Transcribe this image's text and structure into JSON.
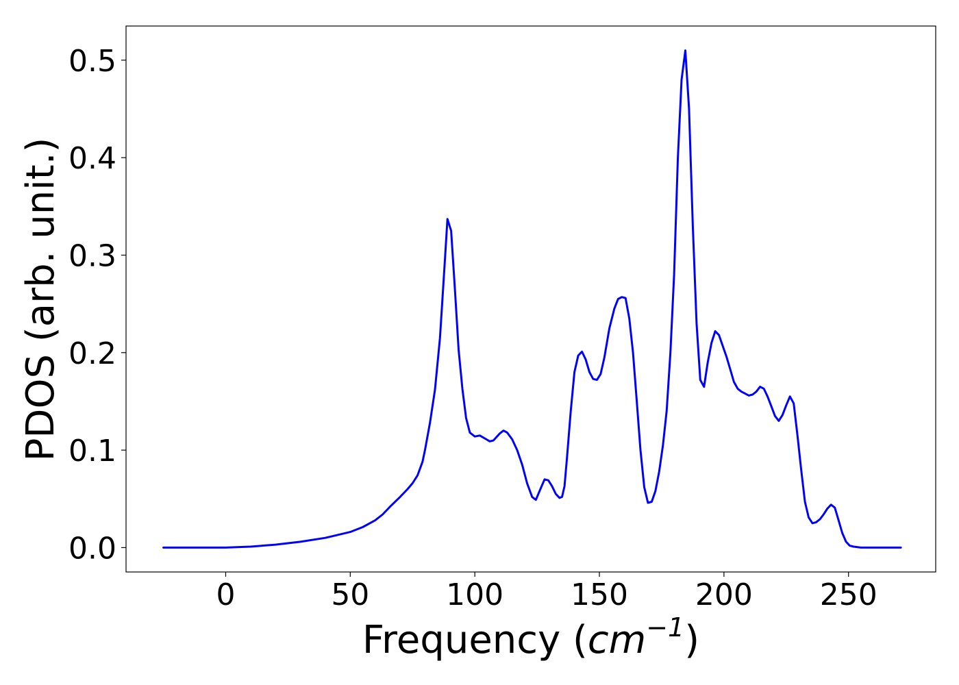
{
  "chart_data": {
    "type": "line",
    "title": "",
    "xlabel": "Frequency (cm⁻¹)",
    "xlabel_parts": {
      "prefix": "Frequency (",
      "unit_base": "cm",
      "unit_exp": "−1",
      "suffix": ")"
    },
    "ylabel": "PDOS (arb. unit.)",
    "xlim": [
      -40,
      285
    ],
    "ylim": [
      -0.025,
      0.535
    ],
    "xticks": [
      0,
      50,
      100,
      150,
      200,
      250
    ],
    "xtick_labels": [
      "0",
      "50",
      "100",
      "150",
      "200",
      "250"
    ],
    "yticks": [
      0.0,
      0.1,
      0.2,
      0.3,
      0.4,
      0.5
    ],
    "ytick_labels": [
      "0.0",
      "0.1",
      "0.2",
      "0.3",
      "0.4",
      "0.5"
    ],
    "grid": false,
    "legend": "none",
    "series": [
      {
        "color": "#0000ff",
        "x": [
          -25,
          0,
          10,
          20,
          30,
          40,
          50,
          55,
          60,
          63,
          66,
          70,
          73,
          75,
          77,
          79,
          80,
          82,
          84,
          86,
          88,
          89,
          90.5,
          92,
          93.5,
          95,
          96.5,
          98,
          100,
          102,
          104,
          106,
          107.5,
          110,
          111.5,
          113,
          115,
          117,
          119,
          121,
          123,
          124.5,
          126.5,
          128,
          129.5,
          131,
          132.5,
          134,
          135,
          136,
          137,
          138.5,
          140,
          141.5,
          143,
          144.5,
          146,
          147.5,
          149,
          150.5,
          152,
          154,
          156,
          157.5,
          159,
          160.5,
          162,
          163.5,
          165,
          166.5,
          168,
          169.5,
          171,
          172.5,
          174,
          175.5,
          177,
          178.5,
          180,
          181.5,
          183,
          184.5,
          186,
          187.5,
          189,
          190.5,
          192,
          193.5,
          195,
          196.5,
          198,
          199.5,
          201,
          202.5,
          204,
          205.5,
          207,
          208.5,
          210,
          211.5,
          213,
          214.5,
          216,
          217.5,
          219,
          220.5,
          222,
          223.5,
          225,
          226.5,
          228,
          229.5,
          231,
          232.5,
          234,
          235.5,
          237,
          238.5,
          240,
          241.5,
          243,
          244.5,
          246,
          247.5,
          249,
          250.5,
          252,
          255,
          260,
          271
        ],
        "y": [
          0.0,
          0.0,
          0.001,
          0.003,
          0.006,
          0.01,
          0.016,
          0.021,
          0.028,
          0.034,
          0.042,
          0.052,
          0.06,
          0.066,
          0.074,
          0.088,
          0.1,
          0.128,
          0.162,
          0.215,
          0.295,
          0.337,
          0.325,
          0.265,
          0.203,
          0.163,
          0.133,
          0.118,
          0.114,
          0.115,
          0.112,
          0.109,
          0.11,
          0.117,
          0.12,
          0.118,
          0.111,
          0.1,
          0.085,
          0.066,
          0.052,
          0.049,
          0.061,
          0.07,
          0.069,
          0.063,
          0.055,
          0.051,
          0.052,
          0.063,
          0.092,
          0.14,
          0.18,
          0.197,
          0.201,
          0.193,
          0.18,
          0.173,
          0.172,
          0.178,
          0.195,
          0.225,
          0.245,
          0.255,
          0.257,
          0.256,
          0.235,
          0.2,
          0.15,
          0.1,
          0.062,
          0.046,
          0.047,
          0.058,
          0.078,
          0.105,
          0.14,
          0.2,
          0.28,
          0.4,
          0.48,
          0.51,
          0.45,
          0.33,
          0.23,
          0.172,
          0.165,
          0.19,
          0.21,
          0.222,
          0.218,
          0.207,
          0.196,
          0.183,
          0.17,
          0.163,
          0.16,
          0.158,
          0.156,
          0.157,
          0.16,
          0.165,
          0.163,
          0.155,
          0.145,
          0.135,
          0.13,
          0.136,
          0.146,
          0.155,
          0.148,
          0.115,
          0.08,
          0.047,
          0.031,
          0.025,
          0.026,
          0.029,
          0.034,
          0.04,
          0.044,
          0.041,
          0.028,
          0.015,
          0.006,
          0.002,
          0.001,
          0.0,
          0.0,
          0.0
        ]
      }
    ]
  }
}
